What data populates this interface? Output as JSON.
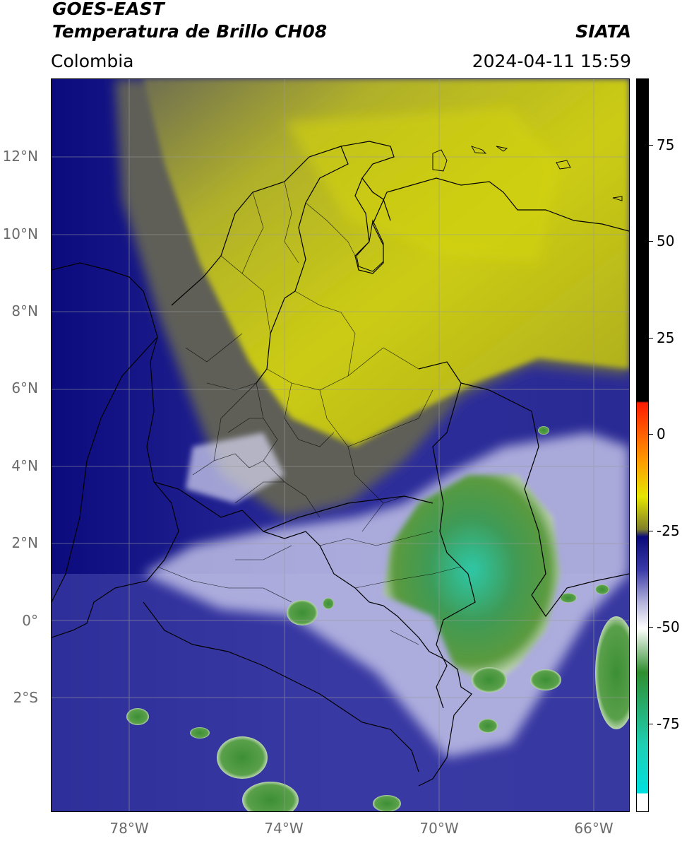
{
  "header": {
    "title_line1": "GOES-EAST",
    "title_line2": "Temperatura de Brillo CH08",
    "subtitle": "Colombia",
    "brand": "SIATA",
    "timestamp": "2024-04-11 15:59"
  },
  "map_axes": {
    "lat_ticks": [
      "12°N",
      "10°N",
      "8°N",
      "6°N",
      "4°N",
      "2°N",
      "0°",
      "2°S"
    ],
    "lon_ticks": [
      "78°W",
      "74°W",
      "70°W",
      "66°W"
    ]
  },
  "colorbar": {
    "ticks": [
      "75",
      "50",
      "25",
      "0",
      "-25",
      "-50",
      "-75"
    ],
    "colors": {
      "black": "#000000",
      "red": "#ff1a00",
      "orange": "#ff9900",
      "yellow": "#e6e600",
      "olive": "#7f7f2a",
      "navy": "#0a0a7a",
      "blue": "#3a3aa8",
      "lavender": "#b4b4dc",
      "white": "#ffffff",
      "green": "#2f8f2f",
      "teal": "#1ecfb4",
      "cyan": "#00e0e0"
    }
  }
}
